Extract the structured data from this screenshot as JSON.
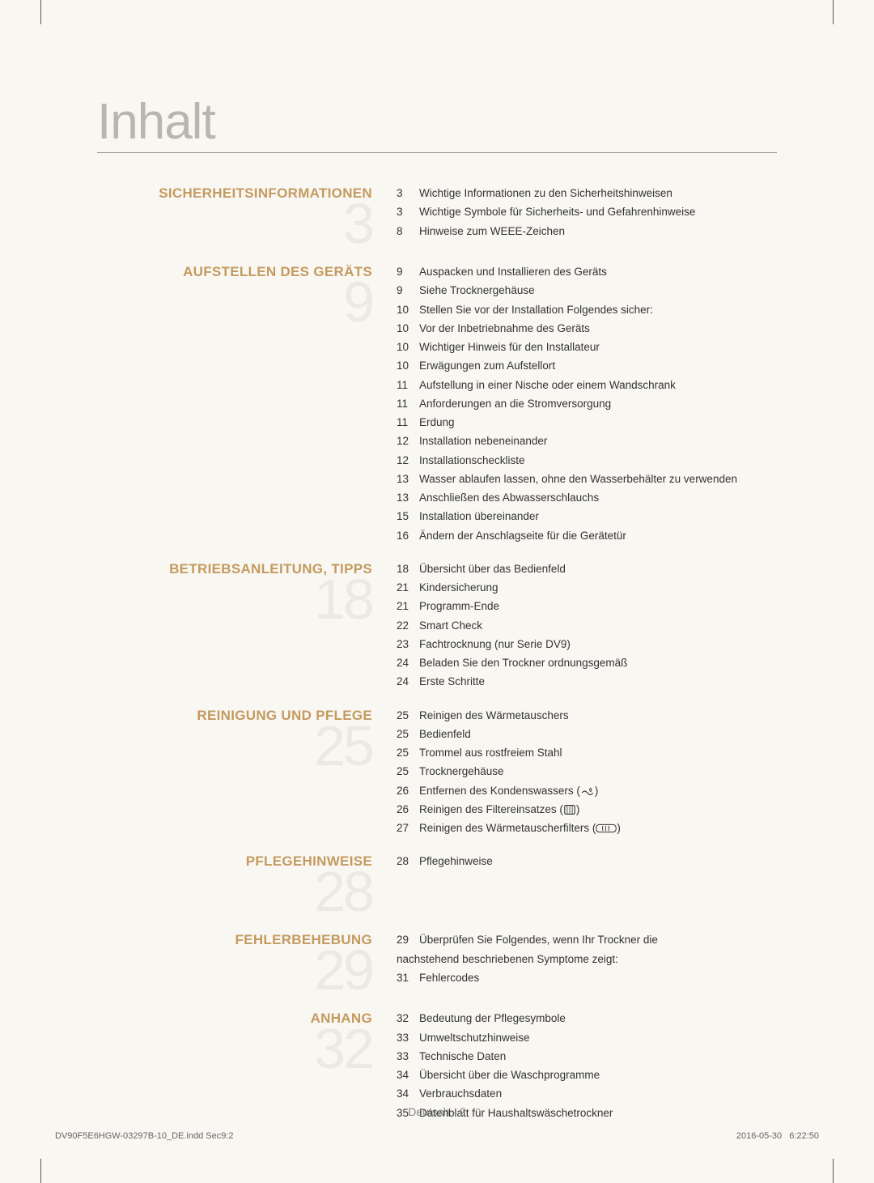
{
  "title": "Inhalt",
  "footer_center": "Deutsch - 2",
  "print_left": "DV90F5E6HGW-03297B-10_DE.indd   Sec9:2",
  "print_date": "2016-05-30",
  "print_time": "6:22:50",
  "sections": [
    {
      "heading": "SICHERHEITSINFORMATIONEN",
      "big": "3",
      "entries": [
        {
          "p": "3",
          "t": "Wichtige Informationen zu den Sicherheitshinweisen"
        },
        {
          "p": "3",
          "t": "Wichtige Symbole für Sicherheits- und Gefahrenhinweise"
        },
        {
          "p": "8",
          "t": "Hinweise zum WEEE-Zeichen"
        }
      ]
    },
    {
      "heading": "AUFSTELLEN DES GERÄTS",
      "big": "9",
      "entries": [
        {
          "p": "9",
          "t": "Auspacken und Installieren des Geräts"
        },
        {
          "p": "9",
          "t": "Siehe Trocknergehäuse"
        },
        {
          "p": "10",
          "t": "Stellen Sie vor der Installation Folgendes sicher:"
        },
        {
          "p": "10",
          "t": "Vor der Inbetriebnahme des Geräts"
        },
        {
          "p": "10",
          "t": "Wichtiger Hinweis für den Installateur"
        },
        {
          "p": "10",
          "t": "Erwägungen zum Aufstellort"
        },
        {
          "p": "11",
          "t": "Aufstellung in einer Nische oder einem Wandschrank"
        },
        {
          "p": "11",
          "t": "Anforderungen an die Stromversorgung"
        },
        {
          "p": "11",
          "t": "Erdung"
        },
        {
          "p": "12",
          "t": "Installation nebeneinander"
        },
        {
          "p": "12",
          "t": "Installationscheckliste"
        },
        {
          "p": "13",
          "t": "Wasser ablaufen lassen, ohne den Wasserbehälter zu verwenden"
        },
        {
          "p": "13",
          "t": "Anschließen des Abwasserschlauchs"
        },
        {
          "p": "15",
          "t": "Installation übereinander"
        },
        {
          "p": "16",
          "t": "Ändern der Anschlagseite für die Gerätetür"
        }
      ]
    },
    {
      "heading": "BETRIEBSANLEITUNG, TIPPS",
      "big": "18",
      "entries": [
        {
          "p": "18",
          "t": "Übersicht über das Bedienfeld"
        },
        {
          "p": "21",
          "t": "Kindersicherung"
        },
        {
          "p": "21",
          "t": "Programm-Ende"
        },
        {
          "p": "22",
          "t": "Smart Check"
        },
        {
          "p": "23",
          "t": "Fachtrocknung (nur Serie DV9)"
        },
        {
          "p": "24",
          "t": "Beladen Sie den Trockner ordnungsgemäß"
        },
        {
          "p": "24",
          "t": "Erste Schritte"
        }
      ]
    },
    {
      "heading": "REINIGUNG UND PFLEGE",
      "big": "25",
      "entries": [
        {
          "p": "25",
          "t": "Reinigen des Wärmetauschers"
        },
        {
          "p": "25",
          "t": "Bedienfeld"
        },
        {
          "p": "25",
          "t": "Trommel aus rostfreiem Stahl"
        },
        {
          "p": "25",
          "t": "Trocknergehäuse"
        },
        {
          "p": "26",
          "t": "Entfernen des Kondenswassers",
          "icon": "water"
        },
        {
          "p": "26",
          "t": "Reinigen des Filtereinsatzes",
          "icon": "filter"
        },
        {
          "p": "27",
          "t": "Reinigen des Wärmetauscherfilters",
          "icon": "heat"
        }
      ]
    },
    {
      "heading": "PFLEGEHINWEISE",
      "big": "28",
      "entries": [
        {
          "p": "28",
          "t": "Pflegehinweise"
        }
      ]
    },
    {
      "heading": "FEHLERBEHEBUNG",
      "big": "29",
      "entries": [
        {
          "p": "29",
          "t": "Überprüfen Sie Folgendes, wenn Ihr Trockner die"
        },
        {
          "p": "",
          "t": "nachstehend beschriebenen Symptome zeigt:",
          "noindent": true
        },
        {
          "p": "31",
          "t": "Fehlercodes"
        }
      ]
    },
    {
      "heading": "ANHANG",
      "big": "32",
      "entries": [
        {
          "p": "32",
          "t": "Bedeutung der Pflegesymbole"
        },
        {
          "p": "33",
          "t": "Umweltschutzhinweise"
        },
        {
          "p": "33",
          "t": "Technische Daten"
        },
        {
          "p": "34",
          "t": "Übersicht über die Waschprogramme"
        },
        {
          "p": "34",
          "t": "Verbrauchsdaten"
        },
        {
          "p": "35",
          "t": "Datenblatt für Haushaltswäschetrockner"
        }
      ]
    }
  ]
}
